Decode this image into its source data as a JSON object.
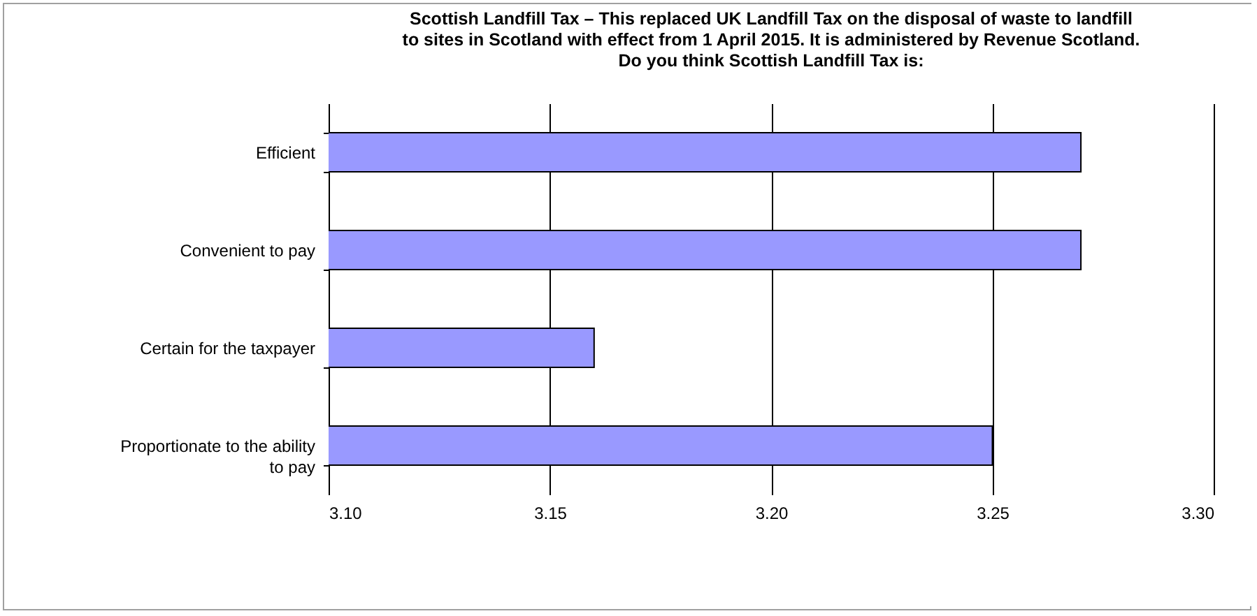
{
  "chart_data": {
    "type": "bar",
    "orientation": "horizontal",
    "title": "Scottish Landfill Tax – This replaced UK Landfill Tax on the disposal of waste to landfill to sites in Scotland with effect from 1 April 2015. It is administered by Revenue Scotland. Do you think Scottish Landfill Tax is:",
    "categories": [
      "Efficient",
      "Convenient to pay",
      "Certain for the taxpayer",
      "Proportionate to the ability to pay"
    ],
    "values": [
      3.27,
      3.27,
      3.16,
      3.25
    ],
    "color": "#9999ff",
    "xlim": [
      3.1,
      3.3
    ],
    "xticks": [
      {
        "value": 3.1,
        "label": "3.10"
      },
      3.15,
      {
        "value": 3.2,
        "label": "3.20"
      },
      3.25,
      {
        "value": 3.3,
        "label": "3.30"
      }
    ],
    "grid": "x"
  }
}
